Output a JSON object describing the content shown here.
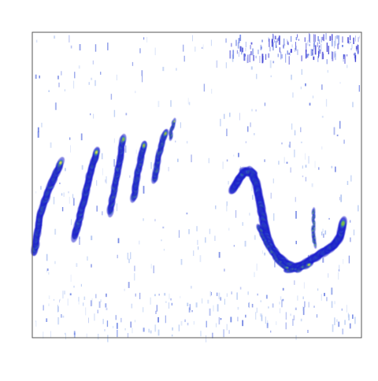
{
  "image": {
    "description_kind": "spectrogram",
    "background_color": "#ffffff",
    "frame_color": "#555555",
    "colormap": [
      "#1c1ccc",
      "#3b5fe0",
      "#3aa05a",
      "#8cc63f",
      "#f2e25a",
      "#f0a040",
      "#e0503a"
    ],
    "visible_text": []
  }
}
